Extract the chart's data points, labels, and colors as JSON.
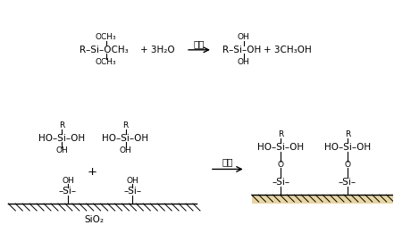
{
  "bg_color": "#ffffff",
  "fig_width": 4.41,
  "fig_height": 2.71,
  "dpi": 100,
  "top_reaction": {
    "reactant": "R–Si–OCH₃ + 3H₂O",
    "reactant_top": "OCH₃",
    "reactant_bottom": "OCH₃",
    "arrow_label": "水解",
    "product": "R–Si–OH + 3CH₃OH",
    "product_top": "OH",
    "product_bottom": "OH"
  },
  "bottom_left": {
    "mol1": "HO–Si–OH",
    "mol1_top": "R",
    "mol1_bottom": "OH",
    "mol2": "HO–Si–OH",
    "mol2_top": "R",
    "mol2_bottom": "OH",
    "plus": "+",
    "surface1_top": "OH",
    "surface1": "–Si–",
    "surface2_top": "OH",
    "surface2": "–Si–",
    "sio2": "SiO₂"
  },
  "bottom_arrow_label": "缩合",
  "bottom_right": {
    "mol1": "HO–Si–OH",
    "mol1_top": "R",
    "mol1_left": "O",
    "mol2": "HO–Si–OH",
    "mol2_top": "R",
    "mol2_left": "O",
    "surface1": "–Si–",
    "surface2": "–Si–"
  }
}
